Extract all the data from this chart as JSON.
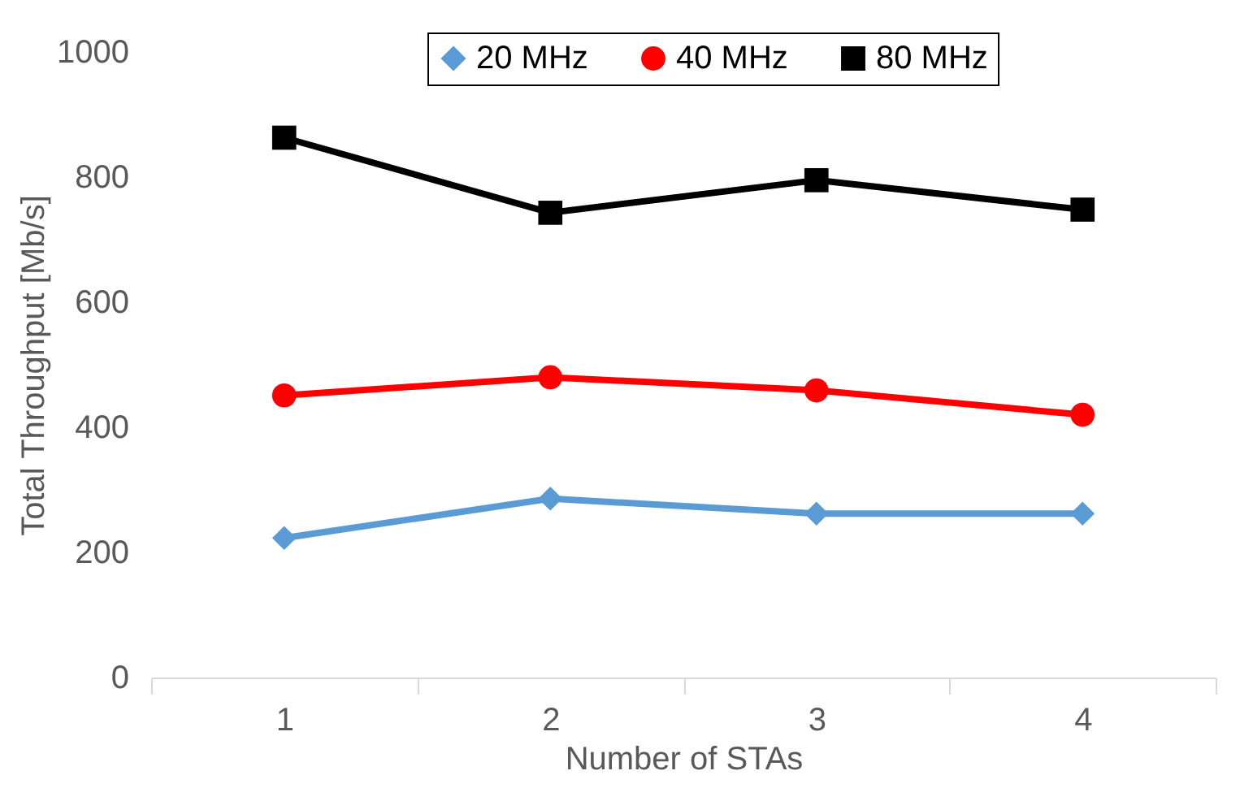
{
  "chart_data": {
    "type": "line",
    "xlabel": "Number of STAs",
    "ylabel": "Total Throughput [Mb/s]",
    "categories": [
      "1",
      "2",
      "3",
      "4"
    ],
    "ylim": [
      0,
      1000
    ],
    "yticks": [
      0,
      200,
      400,
      600,
      800,
      1000
    ],
    "legend": "top",
    "line_style": "solid",
    "series": [
      {
        "name": "20 MHz",
        "color": "#5b9bd5",
        "marker": "diamond",
        "values": [
          223,
          286,
          262,
          262
        ]
      },
      {
        "name": "40 MHz",
        "color": "#ff0000",
        "marker": "circle",
        "values": [
          451,
          480,
          459,
          420
        ]
      },
      {
        "name": "80 MHz",
        "color": "#000000",
        "marker": "square",
        "values": [
          863,
          743,
          795,
          748
        ]
      }
    ]
  }
}
